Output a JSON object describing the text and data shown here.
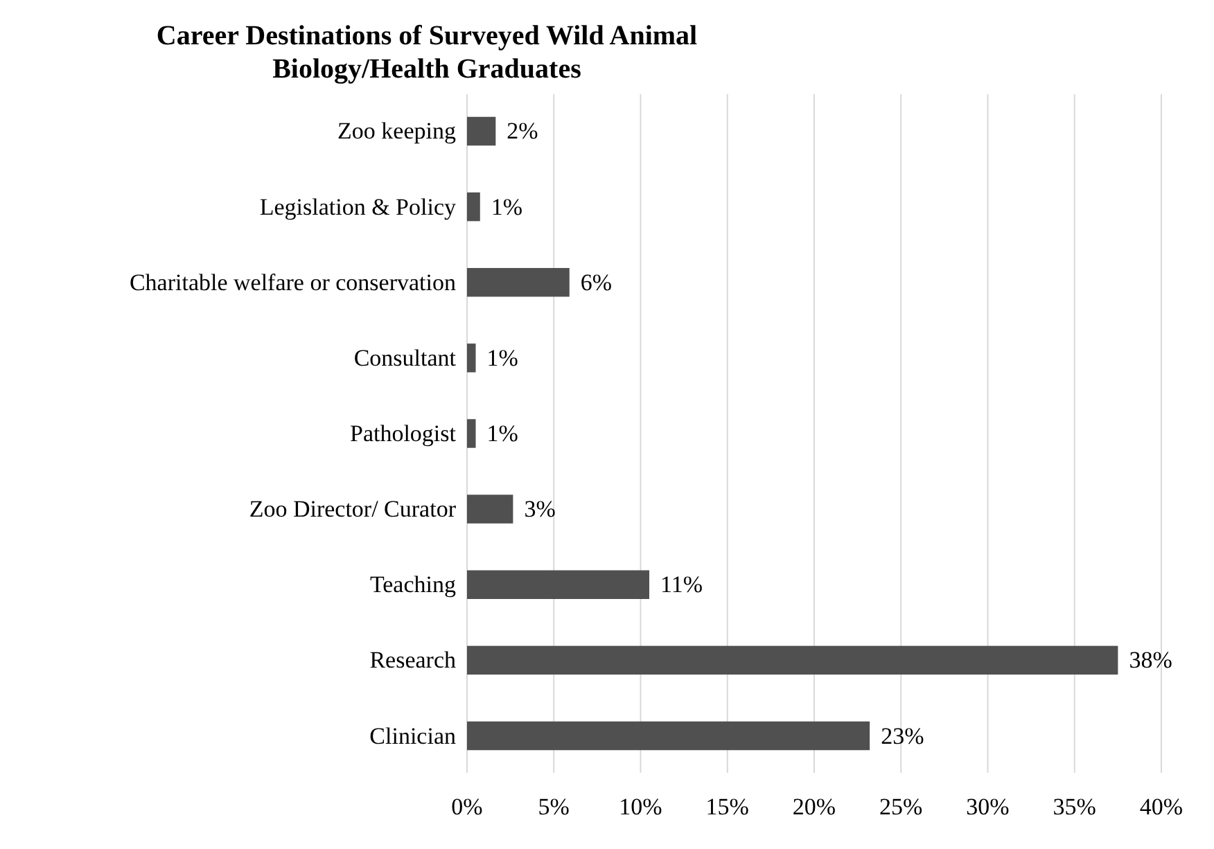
{
  "chart_data": {
    "type": "bar",
    "orientation": "horizontal",
    "title": "Career Destinations of Surveyed Wild Animal Biology/Health Graduates",
    "categories": [
      "Zoo keeping",
      "Legislation & Policy",
      "Charitable welfare or conservation",
      "Consultant",
      "Pathologist",
      "Zoo Director/ Curator",
      "Teaching",
      "Research",
      "Clinician"
    ],
    "values": [
      1.65,
      0.75,
      5.9,
      0.5,
      0.5,
      2.65,
      10.5,
      37.5,
      23.2
    ],
    "value_labels": [
      "2%",
      "1%",
      "6%",
      "1%",
      "1%",
      "3%",
      "11%",
      "38%",
      "23%"
    ],
    "color": "#505050",
    "xlim": [
      0,
      40
    ],
    "xticks": [
      {
        "value": 0,
        "label": "0%"
      },
      {
        "value": 5,
        "label": "5%"
      },
      {
        "value": 10,
        "label": "10%"
      },
      {
        "value": 15,
        "label": "15%"
      },
      {
        "value": 20,
        "label": "20%"
      },
      {
        "value": 25,
        "label": "25%"
      },
      {
        "value": 30,
        "label": "30%"
      },
      {
        "value": 35,
        "label": "35%"
      },
      {
        "value": 40,
        "label": "40%"
      }
    ],
    "grid": "x"
  }
}
